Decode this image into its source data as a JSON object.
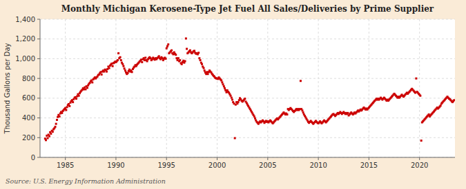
{
  "chart_data": {
    "type": "scatter",
    "title": "Monthly Michigan Kerosene-Type Jet Fuel All Sales/Deliveries by Prime Supplier",
    "ylabel": "Thousand Gallons per Day",
    "annotations": [
      "Source: U.S. Energy Information Administration"
    ],
    "color": "#cc0000",
    "marker": "square",
    "grid": true,
    "xlim": [
      1982.5,
      2023.5
    ],
    "xticks": [
      1985,
      1990,
      1995,
      2000,
      2005,
      2010,
      2015,
      2020
    ],
    "ylim": [
      0,
      1400
    ],
    "yticks": [
      0,
      200,
      400,
      600,
      800,
      {
        "value": 1000,
        "label": "1,000"
      },
      {
        "value": 1200,
        "label": "1,200"
      },
      {
        "value": 1400,
        "label": "1,400"
      }
    ],
    "x": [
      1983.0,
      1983.08,
      1983.17,
      1983.25,
      1983.33,
      1983.42,
      1983.5,
      1983.58,
      1983.67,
      1983.75,
      1983.83,
      1983.92,
      1984.0,
      1984.08,
      1984.17,
      1984.25,
      1984.33,
      1984.42,
      1984.5,
      1984.58,
      1984.67,
      1984.75,
      1984.83,
      1984.92,
      1985.0,
      1985.08,
      1985.17,
      1985.25,
      1985.33,
      1985.42,
      1985.5,
      1985.58,
      1985.67,
      1985.75,
      1985.83,
      1985.92,
      1986.0,
      1986.08,
      1986.17,
      1986.25,
      1986.33,
      1986.42,
      1986.5,
      1986.58,
      1986.67,
      1986.75,
      1986.83,
      1986.92,
      1987.0,
      1987.08,
      1987.17,
      1987.25,
      1987.33,
      1987.42,
      1987.5,
      1987.58,
      1987.67,
      1987.75,
      1987.83,
      1987.92,
      1988.0,
      1988.08,
      1988.17,
      1988.25,
      1988.33,
      1988.42,
      1988.5,
      1988.58,
      1988.67,
      1988.75,
      1988.83,
      1988.92,
      1989.0,
      1989.08,
      1989.17,
      1989.25,
      1989.33,
      1989.42,
      1989.5,
      1989.58,
      1989.67,
      1989.75,
      1989.83,
      1989.92,
      1990.0,
      1990.08,
      1990.17,
      1990.25,
      1990.33,
      1990.42,
      1990.5,
      1990.58,
      1990.67,
      1990.75,
      1990.83,
      1990.92,
      1991.0,
      1991.08,
      1991.17,
      1991.25,
      1991.33,
      1991.42,
      1991.5,
      1991.58,
      1991.67,
      1991.75,
      1991.83,
      1991.92,
      1992.0,
      1992.08,
      1992.17,
      1992.25,
      1992.33,
      1992.42,
      1992.5,
      1992.58,
      1992.67,
      1992.75,
      1992.83,
      1992.92,
      1993.0,
      1993.08,
      1993.17,
      1993.25,
      1993.33,
      1993.42,
      1993.5,
      1993.58,
      1993.67,
      1993.75,
      1993.83,
      1993.92,
      1994.0,
      1994.08,
      1994.17,
      1994.25,
      1994.33,
      1994.42,
      1994.5,
      1994.58,
      1994.67,
      1994.75,
      1994.83,
      1994.92,
      1995.0,
      1995.08,
      1995.17,
      1995.25,
      1995.33,
      1995.42,
      1995.5,
      1995.58,
      1995.67,
      1995.75,
      1995.83,
      1995.92,
      1996.0,
      1996.08,
      1996.17,
      1996.25,
      1996.33,
      1996.42,
      1996.5,
      1996.58,
      1996.67,
      1996.75,
      1996.83,
      1996.92,
      1997.0,
      1997.08,
      1997.17,
      1997.25,
      1997.33,
      1997.42,
      1997.5,
      1997.58,
      1997.67,
      1997.75,
      1997.83,
      1997.92,
      1998.0,
      1998.08,
      1998.17,
      1998.25,
      1998.33,
      1998.42,
      1998.5,
      1998.58,
      1998.67,
      1998.75,
      1998.83,
      1998.92,
      1999.0,
      1999.08,
      1999.17,
      1999.25,
      1999.33,
      1999.42,
      1999.5,
      1999.58,
      1999.67,
      1999.75,
      1999.83,
      1999.92,
      2000.0,
      2000.08,
      2000.17,
      2000.25,
      2000.33,
      2000.42,
      2000.5,
      2000.58,
      2000.67,
      2000.75,
      2000.83,
      2000.92,
      2001.0,
      2001.08,
      2001.17,
      2001.25,
      2001.33,
      2001.42,
      2001.5,
      2001.58,
      2001.67,
      2001.75,
      2001.83,
      2001.92,
      2002.0,
      2002.08,
      2002.17,
      2002.25,
      2002.33,
      2002.42,
      2002.5,
      2002.58,
      2002.67,
      2002.75,
      2002.83,
      2002.92,
      2003.0,
      2003.08,
      2003.17,
      2003.25,
      2003.33,
      2003.42,
      2003.5,
      2003.58,
      2003.67,
      2003.75,
      2003.83,
      2003.92,
      2004.0,
      2004.08,
      2004.17,
      2004.25,
      2004.33,
      2004.42,
      2004.5,
      2004.58,
      2004.67,
      2004.75,
      2004.83,
      2004.92,
      2005.0,
      2005.08,
      2005.17,
      2005.25,
      2005.33,
      2005.42,
      2005.5,
      2005.58,
      2005.67,
      2005.75,
      2005.83,
      2005.92,
      2006.0,
      2006.08,
      2006.17,
      2006.25,
      2006.33,
      2006.42,
      2006.5,
      2006.58,
      2006.67,
      2006.75,
      2006.83,
      2006.92,
      2007.0,
      2007.08,
      2007.17,
      2007.25,
      2007.33,
      2007.42,
      2007.5,
      2007.58,
      2007.67,
      2007.75,
      2007.83,
      2007.92,
      2008.0,
      2008.08,
      2008.17,
      2008.25,
      2008.33,
      2008.42,
      2008.5,
      2008.58,
      2008.67,
      2008.75,
      2008.83,
      2008.92,
      2009.0,
      2009.08,
      2009.17,
      2009.25,
      2009.33,
      2009.42,
      2009.5,
      2009.58,
      2009.67,
      2009.75,
      2009.83,
      2009.92,
      2010.0,
      2010.08,
      2010.17,
      2010.25,
      2010.33,
      2010.42,
      2010.5,
      2010.58,
      2010.67,
      2010.75,
      2010.83,
      2010.92,
      2011.0,
      2011.08,
      2011.17,
      2011.25,
      2011.33,
      2011.42,
      2011.5,
      2011.58,
      2011.67,
      2011.75,
      2011.83,
      2011.92,
      2012.0,
      2012.08,
      2012.17,
      2012.25,
      2012.33,
      2012.42,
      2012.5,
      2012.58,
      2012.67,
      2012.75,
      2012.83,
      2012.92,
      2013.0,
      2013.08,
      2013.17,
      2013.25,
      2013.33,
      2013.42,
      2013.5,
      2013.58,
      2013.67,
      2013.75,
      2013.83,
      2013.92,
      2014.0,
      2014.08,
      2014.17,
      2014.25,
      2014.33,
      2014.42,
      2014.5,
      2014.58,
      2014.67,
      2014.75,
      2014.83,
      2014.92,
      2015.0,
      2015.08,
      2015.17,
      2015.25,
      2015.33,
      2015.42,
      2015.5,
      2015.58,
      2015.67,
      2015.75,
      2015.83,
      2015.92,
      2016.0,
      2016.08,
      2016.17,
      2016.25,
      2016.33,
      2016.42,
      2016.5,
      2016.58,
      2016.67,
      2016.75,
      2016.83,
      2016.92,
      2017.0,
      2017.08,
      2017.17,
      2017.25,
      2017.33,
      2017.42,
      2017.5,
      2017.58,
      2017.67,
      2017.75,
      2017.83,
      2017.92,
      2018.0,
      2018.08,
      2018.17,
      2018.25,
      2018.33,
      2018.42,
      2018.5,
      2018.58,
      2018.67,
      2018.75,
      2018.83,
      2018.92,
      2019.0,
      2019.08,
      2019.17,
      2019.25,
      2019.33,
      2019.42,
      2019.5,
      2019.58,
      2019.67,
      2019.75,
      2019.83,
      2019.92,
      2020.0,
      2020.08,
      2020.17,
      2020.25,
      2020.33,
      2020.42,
      2020.5,
      2020.58,
      2020.67,
      2020.75,
      2020.83,
      2020.92,
      2021.0,
      2021.08,
      2021.17,
      2021.25,
      2021.33,
      2021.42,
      2021.5,
      2021.58,
      2021.67,
      2021.75,
      2021.83,
      2021.92,
      2022.0,
      2022.08,
      2022.17,
      2022.25,
      2022.33,
      2022.42,
      2022.5,
      2022.58,
      2022.67,
      2022.75,
      2022.83,
      2022.92,
      2023.0,
      2023.08,
      2023.17,
      2023.25,
      2023.33,
      2023.42
    ],
    "values": [
      190,
      175,
      220,
      195,
      230,
      215,
      255,
      240,
      270,
      260,
      285,
      295,
      310,
      340,
      380,
      410,
      430,
      415,
      445,
      460,
      450,
      470,
      480,
      490,
      500,
      480,
      510,
      530,
      540,
      520,
      555,
      570,
      580,
      560,
      590,
      605,
      610,
      595,
      620,
      640,
      625,
      650,
      665,
      675,
      685,
      700,
      690,
      710,
      690,
      720,
      705,
      730,
      745,
      755,
      770,
      780,
      760,
      790,
      800,
      810,
      800,
      810,
      820,
      835,
      840,
      855,
      865,
      840,
      870,
      880,
      870,
      890,
      885,
      870,
      895,
      920,
      905,
      930,
      940,
      950,
      925,
      955,
      960,
      970,
      965,
      975,
      985,
      1055,
      1005,
      1015,
      985,
      960,
      945,
      925,
      900,
      880,
      860,
      845,
      855,
      875,
      890,
      870,
      880,
      865,
      895,
      910,
      920,
      935,
      925,
      940,
      950,
      960,
      970,
      980,
      990,
      965,
      995,
      1005,
      985,
      1010,
      985,
      975,
      995,
      1005,
      1015,
      1005,
      985,
      995,
      1010,
      1000,
      990,
      1005,
      995,
      1005,
      1015,
      1025,
      1005,
      995,
      1015,
      1005,
      985,
      1000,
      1010,
      1000,
      1105,
      1125,
      1145,
      1055,
      1065,
      1075,
      1085,
      1055,
      1045,
      1065,
      1050,
      1040,
      1005,
      985,
      1005,
      975,
      985,
      955,
      945,
      965,
      980,
      960,
      975,
      1205,
      1100,
      1055,
      1065,
      1075,
      1085,
      1065,
      1055,
      1065,
      1075,
      1080,
      1060,
      1050,
      1055,
      1045,
      1060,
      1005,
      985,
      960,
      945,
      920,
      905,
      880,
      860,
      845,
      865,
      845,
      865,
      880,
      870,
      860,
      845,
      835,
      825,
      815,
      805,
      800,
      800,
      795,
      810,
      800,
      790,
      780,
      760,
      740,
      720,
      700,
      680,
      660,
      680,
      665,
      655,
      640,
      625,
      605,
      585,
      560,
      545,
      195,
      535,
      560,
      545,
      560,
      580,
      600,
      590,
      575,
      565,
      575,
      585,
      595,
      565,
      550,
      535,
      520,
      505,
      490,
      475,
      460,
      445,
      430,
      415,
      395,
      375,
      360,
      350,
      340,
      355,
      365,
      355,
      365,
      375,
      365,
      350,
      360,
      370,
      360,
      365,
      355,
      365,
      375,
      365,
      355,
      345,
      355,
      365,
      375,
      385,
      395,
      385,
      395,
      405,
      415,
      425,
      435,
      445,
      455,
      445,
      435,
      445,
      435,
      490,
      480,
      490,
      500,
      490,
      480,
      470,
      460,
      470,
      480,
      490,
      480,
      490,
      480,
      490,
      775,
      490,
      475,
      455,
      435,
      420,
      405,
      390,
      375,
      360,
      350,
      360,
      370,
      360,
      350,
      340,
      350,
      360,
      370,
      360,
      350,
      345,
      355,
      365,
      355,
      345,
      355,
      365,
      375,
      365,
      355,
      365,
      375,
      385,
      395,
      405,
      415,
      425,
      435,
      440,
      430,
      420,
      430,
      440,
      450,
      440,
      450,
      460,
      450,
      440,
      450,
      460,
      450,
      440,
      450,
      440,
      450,
      425,
      435,
      445,
      455,
      445,
      435,
      445,
      455,
      445,
      455,
      465,
      475,
      465,
      475,
      485,
      475,
      485,
      495,
      505,
      495,
      485,
      495,
      485,
      495,
      505,
      515,
      525,
      535,
      545,
      555,
      565,
      575,
      585,
      595,
      585,
      595,
      585,
      595,
      605,
      595,
      585,
      595,
      605,
      595,
      585,
      575,
      585,
      575,
      585,
      595,
      605,
      615,
      625,
      635,
      645,
      635,
      625,
      615,
      605,
      615,
      605,
      615,
      625,
      635,
      625,
      615,
      625,
      635,
      645,
      655,
      645,
      655,
      665,
      675,
      685,
      695,
      685,
      675,
      665,
      655,
      800,
      665,
      655,
      645,
      635,
      625,
      170,
      355,
      365,
      375,
      385,
      395,
      405,
      415,
      425,
      435,
      415,
      425,
      435,
      445,
      455,
      465,
      475,
      485,
      495,
      505,
      495,
      505,
      515,
      525,
      545,
      555,
      565,
      575,
      585,
      595,
      605,
      615,
      605,
      595,
      590,
      580,
      570,
      560,
      570,
      580
    ]
  }
}
